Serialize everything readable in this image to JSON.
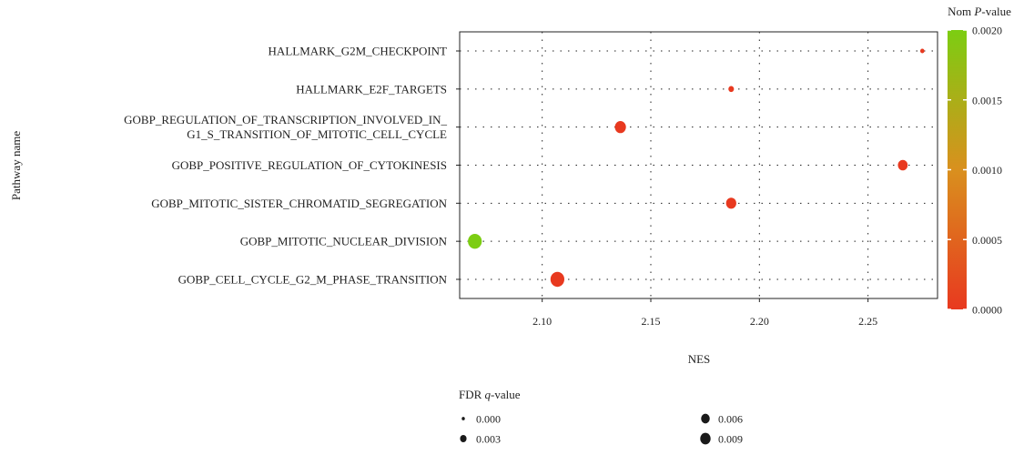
{
  "chart_data": {
    "type": "scatter",
    "xlabel": "NES",
    "ylabel": "Pathway name",
    "xlim": [
      2.062,
      2.282
    ],
    "x_ticks": [
      2.1,
      2.15,
      2.2,
      2.25
    ],
    "x_tick_labels": [
      "2.10",
      "2.15",
      "2.20",
      "2.25"
    ],
    "grid": true,
    "categories": [
      [
        "HALLMARK_G2M_CHECKPOINT"
      ],
      [
        "HALLMARK_E2F_TARGETS"
      ],
      [
        "GOBP_REGULATION_OF_TRANSCRIPTION_INVOLVED_IN_",
        "G1_S_TRANSITION_OF_MITOTIC_CELL_CYCLE"
      ],
      [
        "GOBP_POSITIVE_REGULATION_OF_CYTOKINESIS"
      ],
      [
        "GOBP_MITOTIC_SISTER_CHROMATID_SEGREGATION"
      ],
      [
        "GOBP_MITOTIC_NUCLEAR_DIVISION"
      ],
      [
        "GOBP_CELL_CYCLE_G2_M_PHASE_TRANSITION"
      ]
    ],
    "points": [
      {
        "nes": 2.275,
        "nom_p": 0.0,
        "fdr_q": 0.0
      },
      {
        "nes": 2.187,
        "nom_p": 0.0,
        "fdr_q": 0.0007
      },
      {
        "nes": 2.136,
        "nom_p": 0.0,
        "fdr_q": 0.0055
      },
      {
        "nes": 2.266,
        "nom_p": 0.0,
        "fdr_q": 0.004
      },
      {
        "nes": 2.187,
        "nom_p": 0.0,
        "fdr_q": 0.0045
      },
      {
        "nes": 2.069,
        "nom_p": 0.002,
        "fdr_q": 0.009
      },
      {
        "nes": 2.107,
        "nom_p": 0.0,
        "fdr_q": 0.009
      }
    ],
    "color_legend": {
      "title_prefix": "Nom ",
      "title_italic": "P",
      "title_suffix": "-value",
      "range": [
        0,
        0.002
      ],
      "ticks": [
        0.002,
        0.0015,
        0.001,
        0.0005,
        0.0
      ],
      "tick_labels": [
        "0.0020",
        "0.0015",
        "0.0010",
        "0.0005",
        "0.0000"
      ],
      "color_low": "#e8391f",
      "color_mid": "#d9901e",
      "color_high": "#7ccd12"
    },
    "size_legend": {
      "title_prefix": "FDR ",
      "title_italic": "q",
      "title_suffix": "-value",
      "entries": [
        {
          "label": "0.000",
          "value": 0.0
        },
        {
          "label": "0.006",
          "value": 0.006
        },
        {
          "label": "0.003",
          "value": 0.003
        },
        {
          "label": "0.009",
          "value": 0.009
        }
      ],
      "max_value": 0.009,
      "legend_color": "#1a1a1a"
    }
  }
}
